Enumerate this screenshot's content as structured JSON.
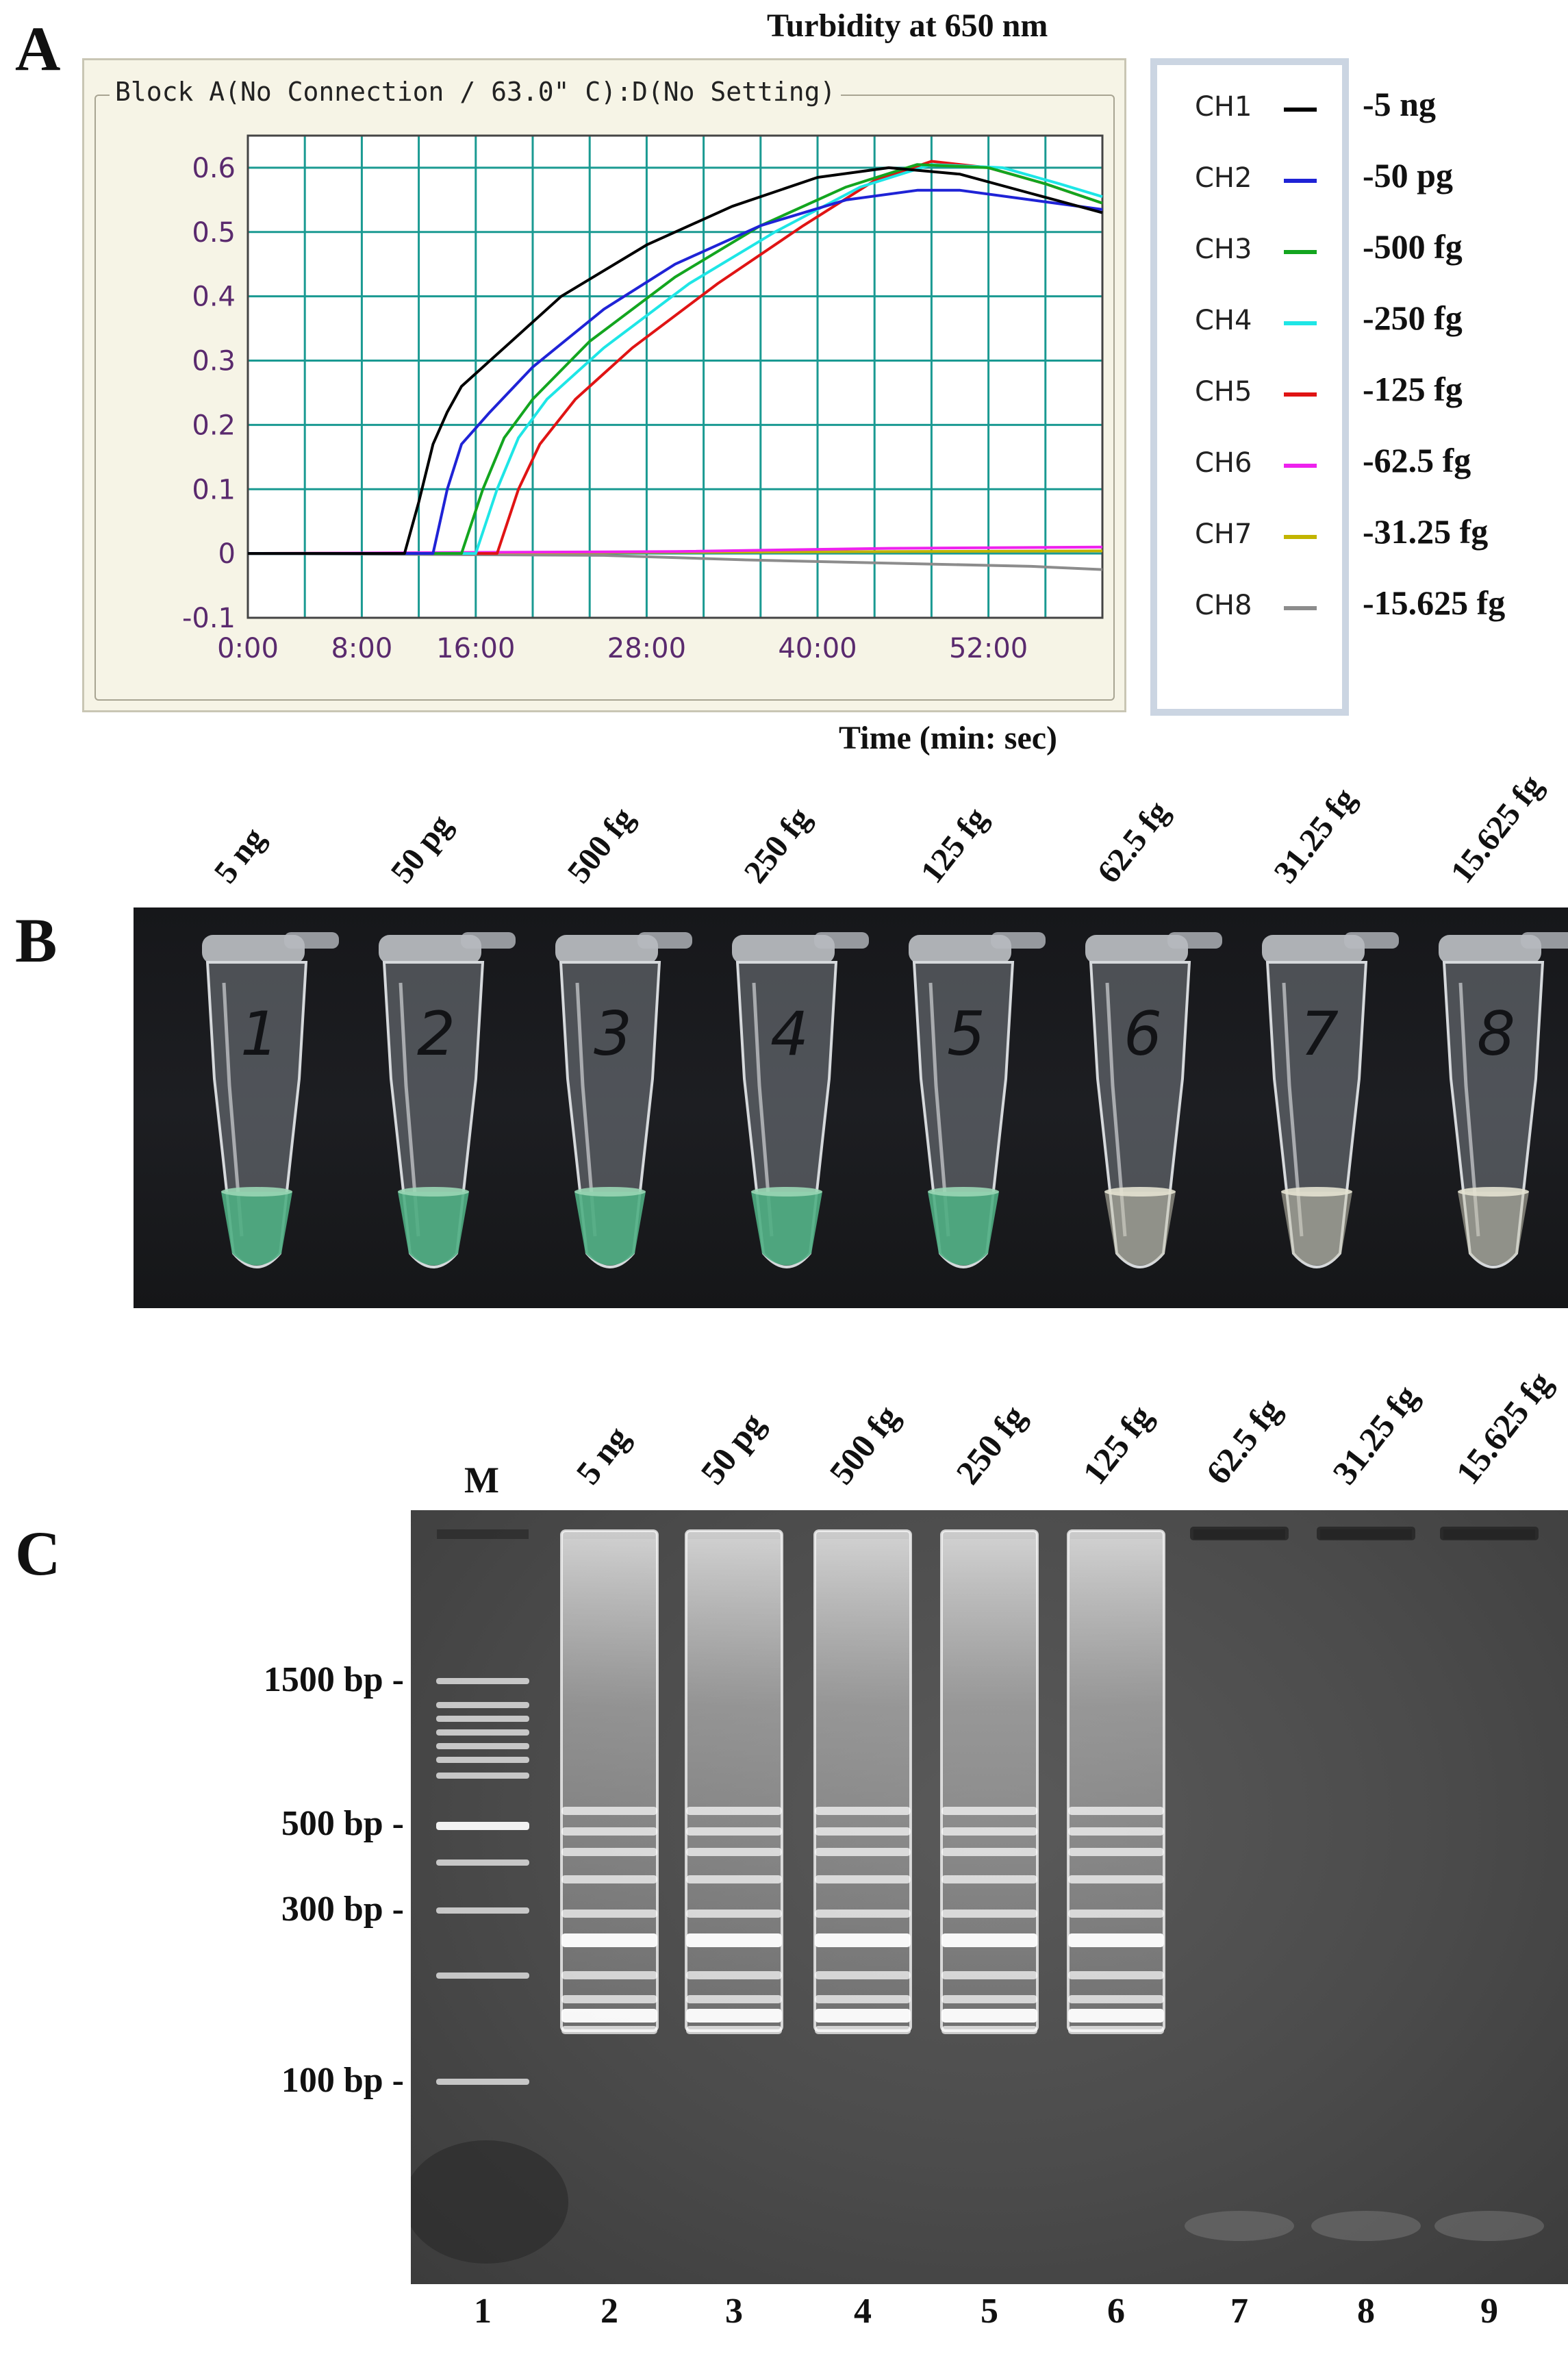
{
  "panelA": {
    "letter": "A",
    "title": "Turbidity at 650 nm",
    "window_label": "Block A(No Connection / 63.0\" C):D(No Setting)",
    "x_axis_title": "Time (min: sec)"
  },
  "chart_data": {
    "type": "line",
    "title": "Turbidity at 650 nm",
    "xlabel": "Time (min: sec)",
    "ylabel": "",
    "xlim": [
      0,
      60
    ],
    "ylim": [
      -0.1,
      0.65
    ],
    "x_ticks": [
      {
        "value": 0,
        "label": "0:00"
      },
      {
        "value": 8,
        "label": "8:00"
      },
      {
        "value": 16,
        "label": "16:00"
      },
      {
        "value": 28,
        "label": "28:00"
      },
      {
        "value": 40,
        "label": "40:00"
      },
      {
        "value": 52,
        "label": "52:00"
      }
    ],
    "y_ticks": [
      {
        "value": 0.6,
        "label": "0.6"
      },
      {
        "value": 0.5,
        "label": "0.5"
      },
      {
        "value": 0.4,
        "label": "0.4"
      },
      {
        "value": 0.3,
        "label": "0.3"
      },
      {
        "value": 0.2,
        "label": "0.2"
      },
      {
        "value": 0.1,
        "label": "0.1"
      },
      {
        "value": 0,
        "label": "0"
      },
      {
        "value": -0.1,
        "label": "-0.1"
      }
    ],
    "grid": true,
    "legend_position": "right-outside",
    "series": [
      {
        "name": "CH1",
        "label": "-5 ng",
        "color": "#000000",
        "points": [
          [
            0,
            0
          ],
          [
            11,
            0
          ],
          [
            12,
            0.08
          ],
          [
            13,
            0.17
          ],
          [
            14,
            0.22
          ],
          [
            15,
            0.26
          ],
          [
            18,
            0.32
          ],
          [
            22,
            0.4
          ],
          [
            28,
            0.48
          ],
          [
            34,
            0.54
          ],
          [
            40,
            0.585
          ],
          [
            45,
            0.6
          ],
          [
            50,
            0.59
          ],
          [
            55,
            0.56
          ],
          [
            60,
            0.53
          ]
        ]
      },
      {
        "name": "CH2",
        "label": "-50 pg",
        "color": "#1f23d6",
        "points": [
          [
            0,
            0
          ],
          [
            13,
            0
          ],
          [
            14,
            0.1
          ],
          [
            15,
            0.17
          ],
          [
            17,
            0.22
          ],
          [
            20,
            0.29
          ],
          [
            25,
            0.38
          ],
          [
            30,
            0.45
          ],
          [
            36,
            0.51
          ],
          [
            42,
            0.55
          ],
          [
            47,
            0.565
          ],
          [
            50,
            0.565
          ],
          [
            55,
            0.55
          ],
          [
            60,
            0.535
          ]
        ]
      },
      {
        "name": "CH3",
        "label": "-500 fg",
        "color": "#13a51f",
        "points": [
          [
            0,
            0
          ],
          [
            15,
            0
          ],
          [
            16.5,
            0.1
          ],
          [
            18,
            0.18
          ],
          [
            20,
            0.24
          ],
          [
            24,
            0.33
          ],
          [
            30,
            0.43
          ],
          [
            36,
            0.51
          ],
          [
            42,
            0.57
          ],
          [
            47,
            0.605
          ],
          [
            52,
            0.6
          ],
          [
            56,
            0.575
          ],
          [
            60,
            0.545
          ]
        ]
      },
      {
        "name": "CH4",
        "label": "-250 fg",
        "color": "#1ee6e6",
        "points": [
          [
            0,
            0
          ],
          [
            16,
            0
          ],
          [
            17.5,
            0.1
          ],
          [
            19,
            0.18
          ],
          [
            21,
            0.24
          ],
          [
            25,
            0.32
          ],
          [
            31,
            0.42
          ],
          [
            37,
            0.5
          ],
          [
            43,
            0.57
          ],
          [
            48,
            0.605
          ],
          [
            53,
            0.6
          ],
          [
            57,
            0.575
          ],
          [
            60,
            0.555
          ]
        ]
      },
      {
        "name": "CH5",
        "label": "-125 fg",
        "color": "#e01414",
        "points": [
          [
            0,
            0
          ],
          [
            17.5,
            0
          ],
          [
            19,
            0.1
          ],
          [
            20.5,
            0.17
          ],
          [
            23,
            0.24
          ],
          [
            27,
            0.32
          ],
          [
            33,
            0.42
          ],
          [
            39,
            0.51
          ],
          [
            44,
            0.58
          ],
          [
            48,
            0.61
          ],
          [
            52,
            0.6
          ],
          [
            56,
            0.575
          ],
          [
            60,
            0.545
          ]
        ]
      },
      {
        "name": "CH6",
        "label": "-62.5 fg",
        "color": "#ee22ee",
        "points": [
          [
            0,
            0
          ],
          [
            30,
            0.003
          ],
          [
            45,
            0.008
          ],
          [
            60,
            0.01
          ]
        ]
      },
      {
        "name": "CH7",
        "label": "-31.25 fg",
        "color": "#c2b400",
        "points": [
          [
            0,
            0
          ],
          [
            30,
            0.002
          ],
          [
            60,
            0.004
          ]
        ]
      },
      {
        "name": "CH8",
        "label": "-15.625 fg",
        "color": "#8c8c8c",
        "points": [
          [
            0,
            0
          ],
          [
            25,
            -0.003
          ],
          [
            35,
            -0.01
          ],
          [
            45,
            -0.015
          ],
          [
            55,
            -0.02
          ],
          [
            60,
            -0.025
          ]
        ]
      }
    ]
  },
  "panelB": {
    "letter": "B",
    "tubes": [
      {
        "label": "5 ng",
        "number": "1",
        "liquid": "green"
      },
      {
        "label": "50 pg",
        "number": "2",
        "liquid": "green"
      },
      {
        "label": "500 fg",
        "number": "3",
        "liquid": "green"
      },
      {
        "label": "250 fg",
        "number": "4",
        "liquid": "green"
      },
      {
        "label": "125 fg",
        "number": "5",
        "liquid": "green"
      },
      {
        "label": "62.5 fg",
        "number": "6",
        "liquid": "clear"
      },
      {
        "label": "31.25 fg",
        "number": "7",
        "liquid": "clear"
      },
      {
        "label": "15.625 fg",
        "number": "8",
        "liquid": "clear"
      }
    ]
  },
  "panelC": {
    "letter": "C",
    "marker_lane_label": "M",
    "marker_labels": [
      "1500 bp -",
      "500 bp -",
      "300 bp -",
      "100 bp -"
    ],
    "lane_labels": [
      "5 ng",
      "50 pg",
      "500 fg",
      "250 fg",
      "125 fg",
      "62.5 fg",
      "31.25 fg",
      "15.625 fg"
    ],
    "lane_numbers": [
      "1",
      "2",
      "3",
      "4",
      "5",
      "6",
      "7",
      "8",
      "9"
    ]
  }
}
